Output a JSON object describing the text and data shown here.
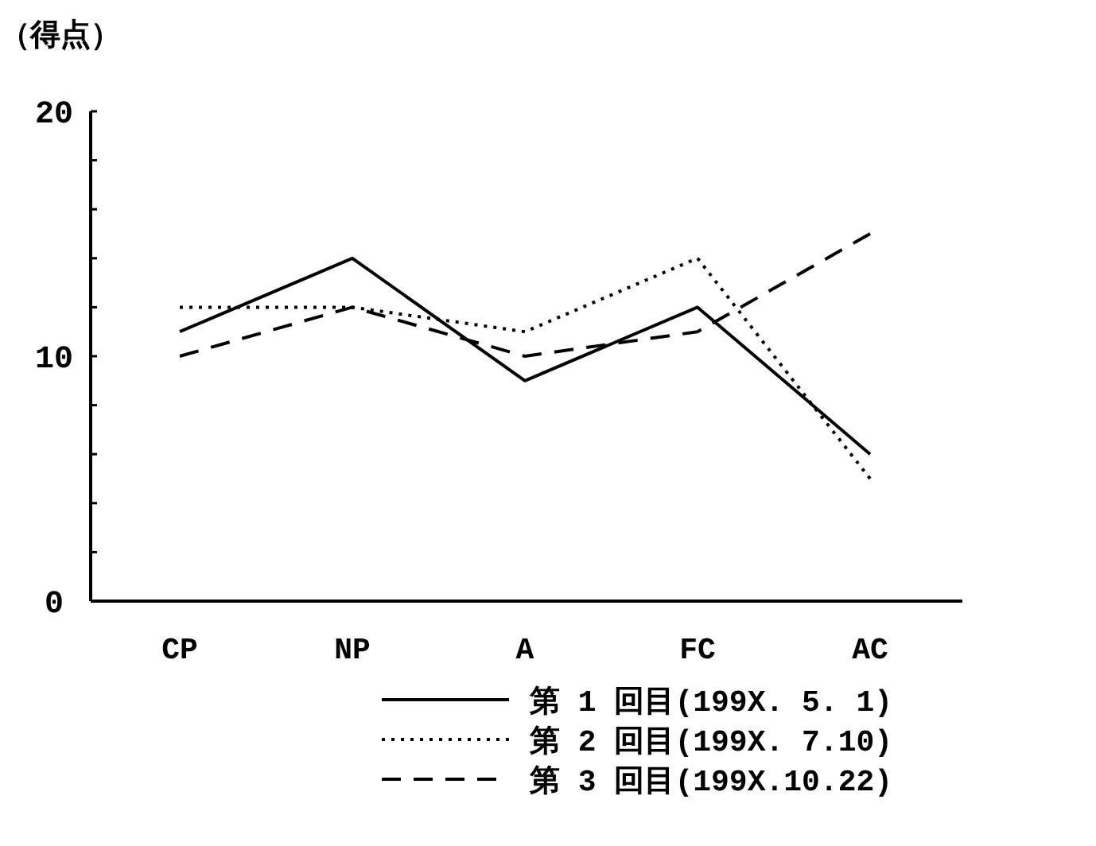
{
  "chart_data": {
    "type": "line",
    "ylabel": "（得点）",
    "categories": [
      "CP",
      "NP",
      "A",
      "FC",
      "AC"
    ],
    "series": [
      {
        "name": "第 1 回目(199X. 5. 1)",
        "color": "#000000",
        "line_style": "solid",
        "values": [
          11,
          14,
          9,
          12,
          6
        ]
      },
      {
        "name": "第 2 回目(199X. 7.10)",
        "color": "#000000",
        "line_style": "dotted",
        "values": [
          12,
          12,
          11,
          14,
          5
        ]
      },
      {
        "name": "第 3 回目(199X.10.22)",
        "color": "#000000",
        "line_style": "dashed",
        "values": [
          10,
          12,
          10,
          11,
          15
        ]
      }
    ],
    "ylim": [
      0,
      20
    ],
    "yticks": [
      0,
      {
        "value": 2,
        "label": null
      },
      {
        "value": 4,
        "label": null
      },
      {
        "value": 6,
        "label": null
      },
      {
        "value": 8,
        "label": null
      },
      10,
      {
        "value": 12,
        "label": null
      },
      {
        "value": 14,
        "label": null
      },
      {
        "value": 16,
        "label": null
      },
      {
        "value": 18,
        "label": null
      },
      20
    ],
    "legend": "bottom right"
  }
}
